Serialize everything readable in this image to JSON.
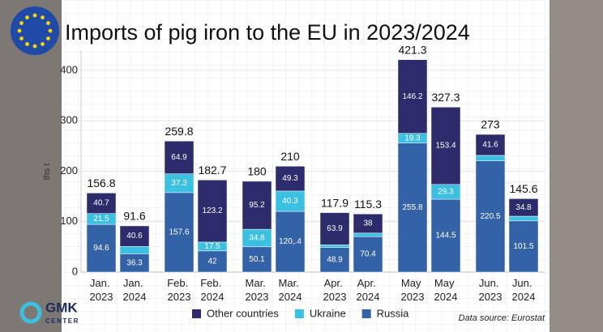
{
  "chart_data": {
    "type": "stacked_bar",
    "title": "Imports of pig iron to the EU in 2023/2024",
    "y_label": "ths t",
    "categories": [
      "Jan. 2023",
      "Jan. 2024",
      "Feb. 2023",
      "Feb. 2024",
      "Mar. 2023",
      "Mar. 2024",
      "Apr. 2023",
      "Apr. 2024",
      "May 2023",
      "May 2024",
      "Jun. 2023",
      "Jun. 2024"
    ],
    "series": [
      {
        "name": "Russia",
        "color": "#3462a6",
        "values": [
          94.6,
          36.3,
          157.6,
          42,
          50.1,
          120.4,
          48.9,
          70.4,
          255.8,
          144.5,
          220.5,
          101.5
        ],
        "value_labels": [
          "94.6",
          "36.3",
          "157.6",
          "42",
          "50.1",
          "120,.4",
          "48.9",
          "70.4",
          "255.8",
          "144.5",
          "220.5",
          "101.5"
        ]
      },
      {
        "name": "Ukraine",
        "color": "#3cc0e2",
        "values": [
          21.5,
          14.7,
          37.3,
          17.5,
          34.8,
          40.3,
          5.1,
          6.9,
          19.3,
          29.3,
          10.9,
          9.3
        ],
        "value_labels": [
          "21.5",
          null,
          "37.3",
          "17.5",
          "34.8",
          "40.3",
          null,
          null,
          "19.3",
          "29.3",
          null,
          null
        ]
      },
      {
        "name": "Other countries",
        "color": "#2c2c6c",
        "values": [
          40.7,
          40.6,
          64.9,
          123.2,
          95.2,
          49.3,
          63.9,
          38,
          146.2,
          153.4,
          41.6,
          34.8
        ],
        "value_labels": [
          "40.7",
          "40.6",
          "64.9",
          "123.2",
          "95.2",
          "49.3",
          "63.9",
          "38",
          "146.2",
          "153.4",
          "41.6",
          "34.8"
        ]
      }
    ],
    "totals": [
      156.8,
      91.6,
      259.8,
      182.7,
      180,
      210,
      117.9,
      115.3,
      421.3,
      327.3,
      273,
      145.6
    ],
    "ylim": [
      0,
      440
    ],
    "yticks": [
      0,
      100,
      200,
      300,
      400
    ],
    "grid": true,
    "legend_order": [
      2,
      1,
      0
    ],
    "source": "Data source: Eurostat",
    "logo": {
      "name": "GMK",
      "sub": "CENTER"
    }
  }
}
